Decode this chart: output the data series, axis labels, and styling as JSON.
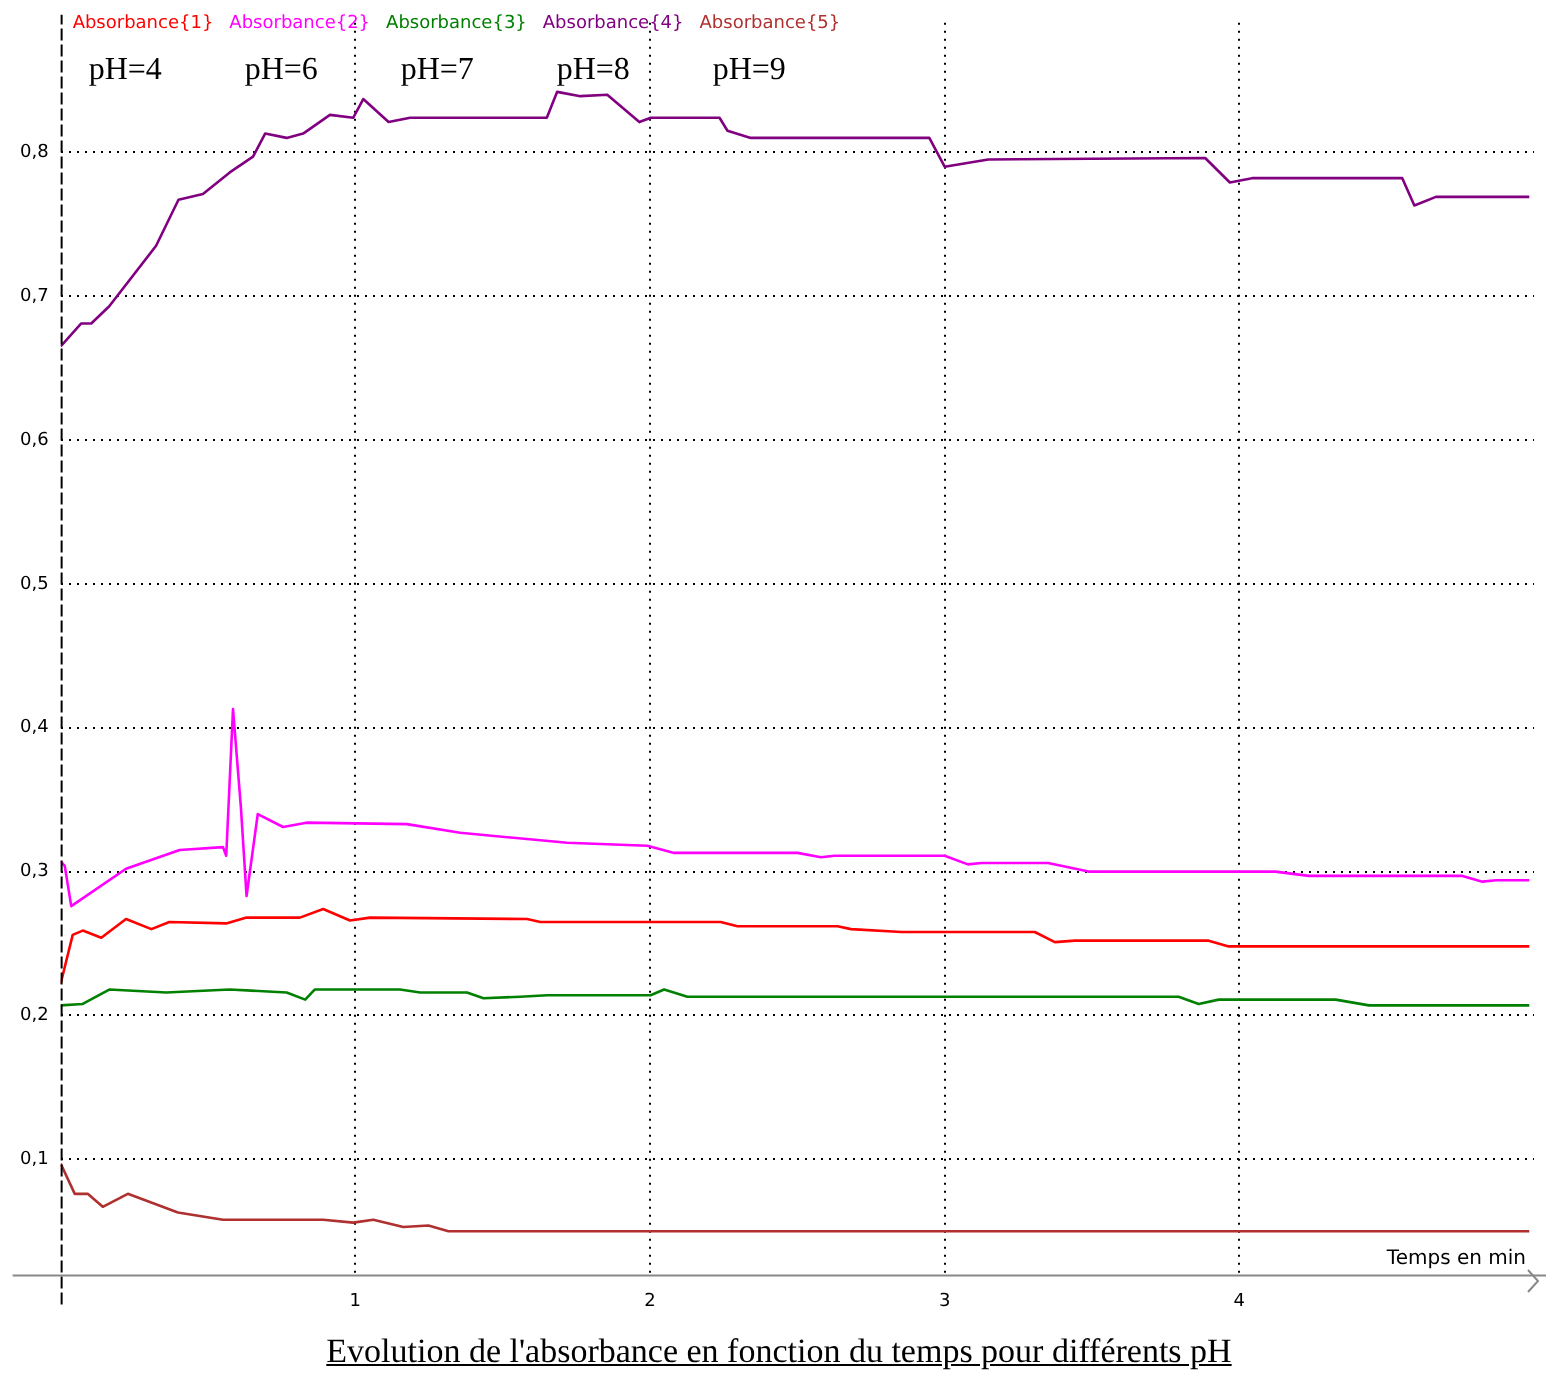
{
  "chart_data": {
    "type": "line",
    "title": "Evolution de l'absorbance en fonction du temps pour différents pH",
    "xlabel": "Temps en min",
    "xlim": [
      0,
      5
    ],
    "xticks": [
      1,
      2,
      3,
      4
    ],
    "ylim": [
      0.02,
      0.89
    ],
    "yticks": [
      {
        "value": 0.1,
        "label": "0,1"
      },
      {
        "value": 0.2,
        "label": "0,2"
      },
      {
        "value": 0.3,
        "label": "0,3"
      },
      {
        "value": 0.4,
        "label": "0,4"
      },
      {
        "value": 0.5,
        "label": "0,5"
      },
      {
        "value": 0.6,
        "label": "0,6"
      },
      {
        "value": 0.7,
        "label": "0,7"
      },
      {
        "value": 0.8,
        "label": "0,8"
      }
    ],
    "grid": true,
    "legend": "top left",
    "marker": "none",
    "line_style": "solid",
    "annotations": [
      "pH=4",
      "pH=6",
      "pH=7",
      "pH=8",
      "pH=9"
    ],
    "series": [
      {
        "name": "Absorbance{1}",
        "color": "#ff0000",
        "x": [
          0,
          0.041,
          0.075,
          0.138,
          0.222,
          0.308,
          0.369,
          0.562,
          0.631,
          0.812,
          0.891,
          0.982,
          1.05,
          1.583,
          1.628,
          2.24,
          2.297,
          2.637,
          2.682,
          2.853,
          3.306,
          3.374,
          3.442,
          3.896,
          3.964,
          4.984
        ],
        "values": [
          0.222,
          0.256,
          0.259,
          0.254,
          0.267,
          0.26,
          0.265,
          0.264,
          0.268,
          0.268,
          0.274,
          0.266,
          0.268,
          0.267,
          0.265,
          0.265,
          0.262,
          0.262,
          0.26,
          0.258,
          0.258,
          0.251,
          0.252,
          0.252,
          0.248,
          0.248
        ]
      },
      {
        "name": "Absorbance{2}",
        "color": "#ff00ff",
        "x": [
          0,
          0.014,
          0.036,
          0.222,
          0.404,
          0.551,
          0.562,
          0.585,
          0.612,
          0.631,
          0.669,
          0.755,
          0.834,
          1.175,
          1.356,
          1.719,
          1.991,
          2.082,
          2.501,
          2.58,
          2.626,
          3.0,
          3.079,
          3.125,
          3.351,
          3.488,
          4.122,
          4.236,
          4.757,
          4.825,
          4.871,
          4.984
        ],
        "values": [
          0.307,
          0.304,
          0.276,
          0.302,
          0.315,
          0.317,
          0.311,
          0.413,
          0.344,
          0.283,
          0.34,
          0.331,
          0.334,
          0.333,
          0.327,
          0.32,
          0.318,
          0.313,
          0.313,
          0.31,
          0.311,
          0.311,
          0.305,
          0.306,
          0.306,
          0.3,
          0.3,
          0.297,
          0.297,
          0.293,
          0.294,
          0.294
        ]
      },
      {
        "name": "Absorbance{3}",
        "color": "#008000",
        "x": [
          0,
          0.075,
          0.165,
          0.358,
          0.574,
          0.767,
          0.83,
          0.862,
          1.152,
          1.22,
          1.379,
          1.435,
          1.56,
          1.651,
          2.002,
          2.048,
          2.127,
          3.794,
          3.862,
          3.93,
          4.327,
          4.44,
          4.984
        ],
        "values": [
          0.207,
          0.208,
          0.218,
          0.216,
          0.218,
          0.216,
          0.211,
          0.218,
          0.218,
          0.216,
          0.216,
          0.212,
          0.213,
          0.214,
          0.214,
          0.218,
          0.213,
          0.213,
          0.208,
          0.211,
          0.211,
          0.207,
          0.207
        ]
      },
      {
        "name": "Absorbance{4}",
        "color": "#800080",
        "x": [
          0,
          0.07,
          0.104,
          0.165,
          0.324,
          0.4,
          0.483,
          0.574,
          0.653,
          0.694,
          0.767,
          0.823,
          0.914,
          0.993,
          1.027,
          1.113,
          1.186,
          1.65,
          1.685,
          1.764,
          1.855,
          1.964,
          2.003,
          2.236,
          2.263,
          2.342,
          2.948,
          3.0,
          3.148,
          3.884,
          3.968,
          4.043,
          4.553,
          4.594,
          4.667,
          4.984
        ],
        "values": [
          0.665,
          0.681,
          0.681,
          0.693,
          0.735,
          0.767,
          0.771,
          0.786,
          0.797,
          0.813,
          0.81,
          0.813,
          0.826,
          0.824,
          0.837,
          0.821,
          0.824,
          0.824,
          0.842,
          0.839,
          0.84,
          0.821,
          0.824,
          0.824,
          0.815,
          0.81,
          0.81,
          0.79,
          0.795,
          0.796,
          0.779,
          0.782,
          0.782,
          0.763,
          0.769,
          0.769
        ]
      },
      {
        "name": "Absorbance{5}",
        "color": "#b03030",
        "x": [
          0,
          0.048,
          0.092,
          0.143,
          0.228,
          0.398,
          0.551,
          0.891,
          0.993,
          1.061,
          1.163,
          1.248,
          1.316,
          4.984
        ],
        "values": [
          0.097,
          0.076,
          0.076,
          0.067,
          0.076,
          0.063,
          0.058,
          0.058,
          0.056,
          0.058,
          0.053,
          0.054,
          0.05,
          0.05
        ]
      }
    ]
  }
}
